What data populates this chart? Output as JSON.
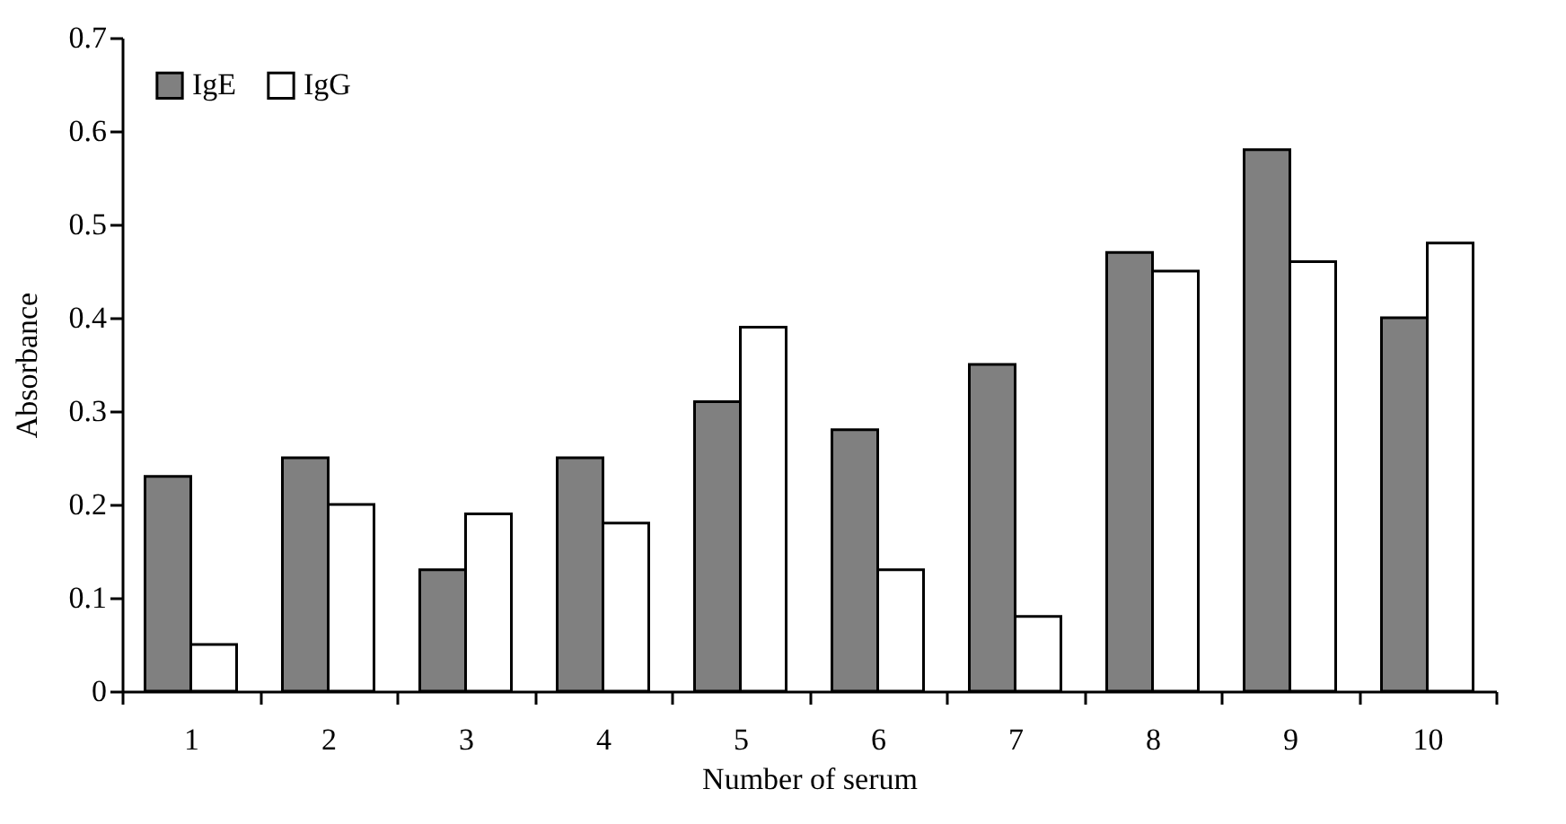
{
  "chart_data": {
    "type": "bar",
    "xlabel": "Number of serum",
    "ylabel": "Absorbance",
    "categories": [
      "1",
      "2",
      "3",
      "4",
      "5",
      "6",
      "7",
      "8",
      "9",
      "10"
    ],
    "series": [
      {
        "name": "IgE",
        "color": "#808080",
        "values": [
          0.23,
          0.25,
          0.13,
          0.25,
          0.31,
          0.28,
          0.35,
          0.47,
          0.58,
          0.4
        ]
      },
      {
        "name": "IgG",
        "color": "#ffffff",
        "values": [
          0.05,
          0.2,
          0.19,
          0.18,
          0.39,
          0.13,
          0.08,
          0.45,
          0.46,
          0.48
        ]
      }
    ],
    "ylim": [
      0,
      0.7
    ],
    "yticks": [
      {
        "value": 0,
        "label": "0"
      },
      0.1,
      0.2,
      0.3,
      0.4,
      0.5,
      0.6,
      0.7
    ],
    "grid": false,
    "legend": "top left"
  }
}
